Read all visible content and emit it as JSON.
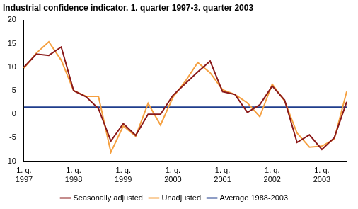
{
  "chart_data": {
    "type": "line",
    "title": "Industrial confidence indicator. 1. quarter 1997-3. quarter 2003",
    "categories": [
      "1. q. 1997",
      null,
      null,
      null,
      "1. q. 1998",
      null,
      null,
      null,
      "1. q. 1999",
      null,
      null,
      null,
      "1. q. 2000",
      null,
      null,
      null,
      "1. q. 2001",
      null,
      null,
      null,
      "1. q. 2002",
      null,
      null,
      null,
      "1. q. 2003",
      null,
      null
    ],
    "series": [
      {
        "name": "Seasonally adjusted",
        "color": "#8b1a1a",
        "values": [
          10,
          12.8,
          12.5,
          14.3,
          5,
          3.7,
          1.2,
          -5.7,
          -2,
          -4.5,
          0,
          0,
          4,
          6.5,
          9,
          11.3,
          4.8,
          4.2,
          0.4,
          2,
          6,
          3,
          -6,
          -4.4,
          -7.5,
          -5,
          2.6
        ]
      },
      {
        "name": "Unadjusted",
        "color": "#f5a040",
        "values": [
          9.8,
          13,
          15.4,
          11.5,
          5,
          3.8,
          3.8,
          -8.1,
          -2.5,
          -4.7,
          2.3,
          -2.3,
          3.6,
          7,
          11,
          8.8,
          5.2,
          4.2,
          2.4,
          -0.5,
          6.4,
          2.8,
          -4,
          -7,
          -6.8,
          -5.3,
          4.8
        ]
      },
      {
        "name": "Average 1988-2003",
        "color": "#1f3d8c",
        "values": [
          1.5,
          1.5,
          1.5,
          1.5,
          1.5,
          1.5,
          1.5,
          1.5,
          1.5,
          1.5,
          1.5,
          1.5,
          1.5,
          1.5,
          1.5,
          1.5,
          1.5,
          1.5,
          1.5,
          1.5,
          1.5,
          1.5,
          1.5,
          1.5,
          1.5,
          1.5,
          1.5
        ]
      }
    ],
    "ylim": [
      -10,
      20
    ],
    "yticks": [
      -10,
      -5,
      0,
      5,
      10,
      15,
      20
    ],
    "grid": false,
    "legend": "bottom"
  }
}
